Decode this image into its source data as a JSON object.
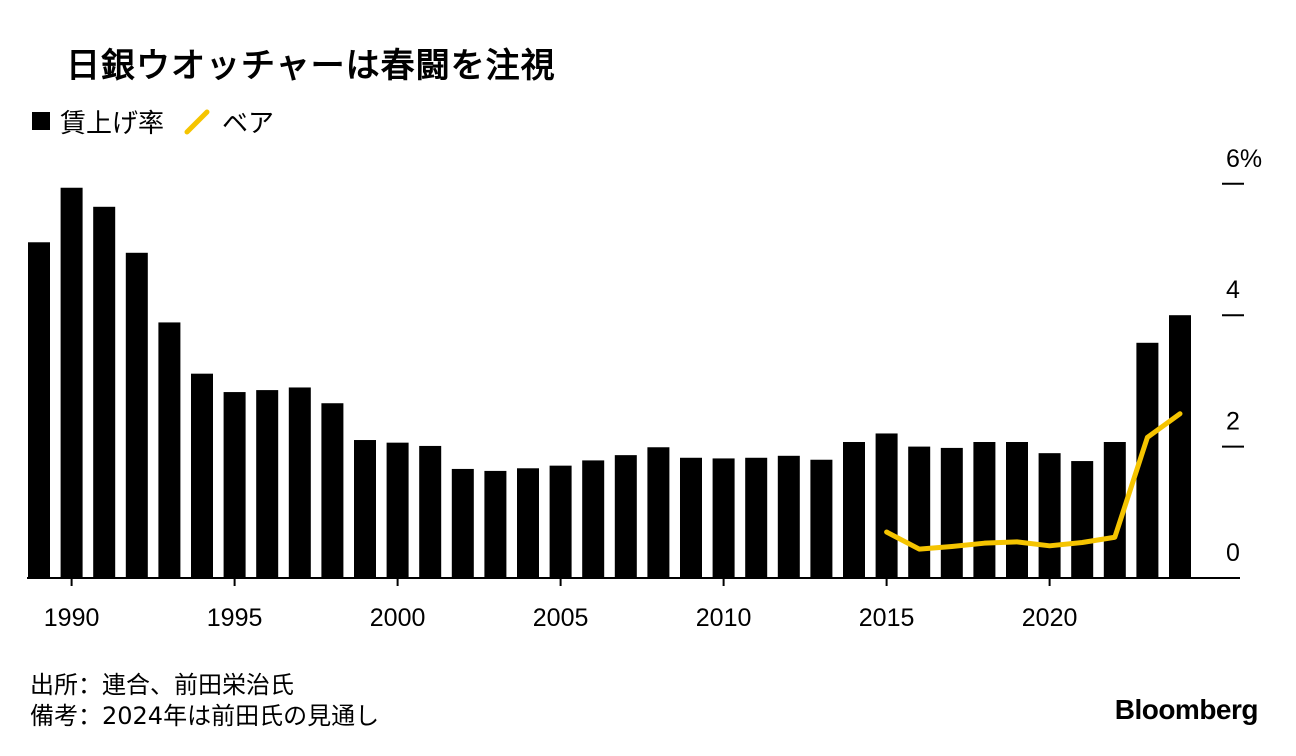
{
  "title": "日銀ウオッチャーは春闘を注視",
  "legend": {
    "bar_label": "賃上げ率",
    "line_label": "ベア"
  },
  "footer": {
    "source": "出所：連合、前田栄治氏",
    "note": "備考：2024年は前田氏の見通し"
  },
  "brand": "Bloomberg",
  "colors": {
    "bar": "#000000",
    "line": "#f5c400",
    "axis": "#000000"
  },
  "chart_data": {
    "type": "bar",
    "title": "日銀ウオッチャーは春闘を注視",
    "xlabel": "",
    "ylabel": "",
    "ylim": [
      0,
      6
    ],
    "y_ticks": [
      0,
      2,
      4,
      6
    ],
    "y_tick_labels": [
      "0",
      "2",
      "4",
      "6%"
    ],
    "y_axis_side": "right",
    "x_ticks": [
      1990,
      1995,
      2000,
      2005,
      2010,
      2015,
      2020
    ],
    "x_tick_labels": [
      "1990",
      "1995",
      "2000",
      "2005",
      "2010",
      "2015",
      "2020"
    ],
    "grid": false,
    "legend_position": "top-left",
    "x": [
      1989,
      1990,
      1991,
      1992,
      1993,
      1994,
      1995,
      1996,
      1997,
      1998,
      1999,
      2000,
      2001,
      2002,
      2003,
      2004,
      2005,
      2006,
      2007,
      2008,
      2009,
      2010,
      2011,
      2012,
      2013,
      2014,
      2015,
      2016,
      2017,
      2018,
      2019,
      2020,
      2021,
      2022,
      2023,
      2024
    ],
    "series": [
      {
        "name": "賃上げ率",
        "type": "bar",
        "values": [
          5.11,
          5.94,
          5.65,
          4.95,
          3.89,
          3.11,
          2.83,
          2.86,
          2.9,
          2.66,
          2.1,
          2.06,
          2.01,
          1.66,
          1.63,
          1.67,
          1.71,
          1.79,
          1.87,
          1.99,
          1.83,
          1.82,
          1.83,
          1.86,
          1.8,
          2.07,
          2.2,
          2.0,
          1.98,
          2.07,
          2.07,
          1.9,
          1.78,
          2.07,
          3.58,
          4.0
        ]
      },
      {
        "name": "ベア",
        "type": "line",
        "x": [
          2015,
          2016,
          2017,
          2018,
          2019,
          2020,
          2021,
          2022,
          2023,
          2024
        ],
        "values": [
          0.7,
          0.44,
          0.48,
          0.53,
          0.55,
          0.49,
          0.54,
          0.62,
          2.14,
          2.5
        ]
      }
    ]
  }
}
